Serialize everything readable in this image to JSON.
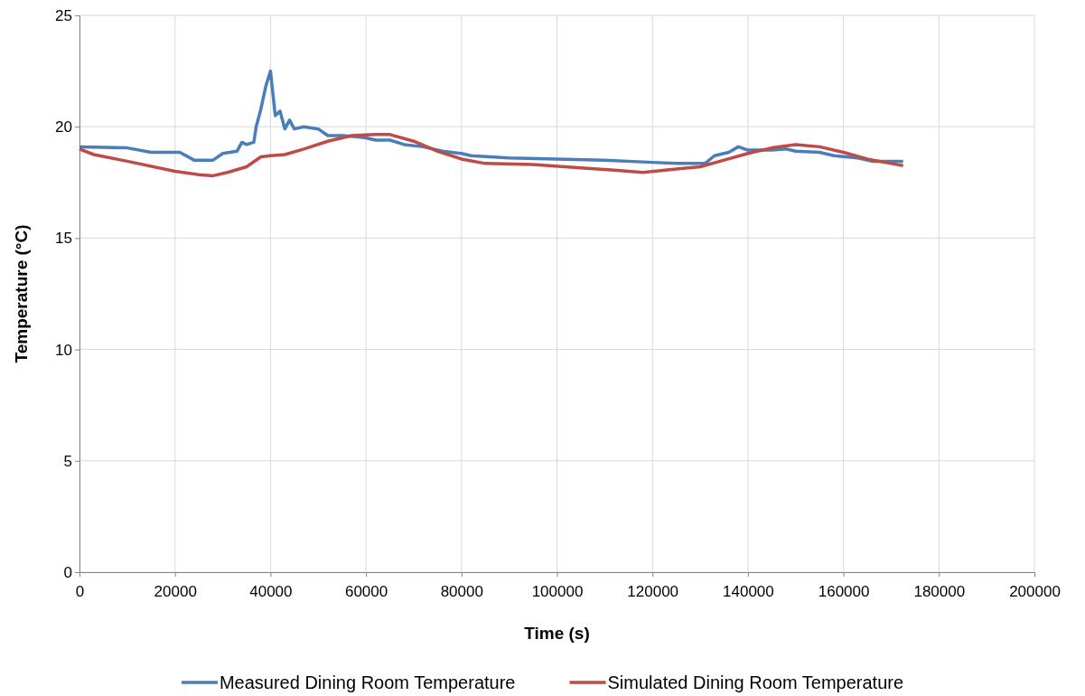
{
  "chart_data": {
    "type": "line",
    "xlabel": "Time (s)",
    "ylabel": "Temperature (°C)",
    "xlim": [
      0,
      200000
    ],
    "xticks": [
      0,
      20000,
      40000,
      60000,
      80000,
      100000,
      120000,
      140000,
      160000,
      180000,
      200000
    ],
    "ylim": [
      0,
      25
    ],
    "yticks": [
      0,
      5,
      10,
      15,
      20,
      25
    ],
    "grid": true,
    "legend": "bottom",
    "line_style": "solid",
    "marker": "none",
    "series": [
      {
        "name": "Measured Dining Room Temperature",
        "color": "#4a7ebb",
        "x": [
          0,
          10000,
          15000,
          21000,
          24000,
          28000,
          30000,
          33000,
          34000,
          35000,
          36500,
          37000,
          38000,
          39000,
          40000,
          40500,
          41000,
          42000,
          43000,
          44000,
          45000,
          47000,
          50000,
          52000,
          55000,
          58000,
          60000,
          62000,
          65000,
          68000,
          72000,
          76000,
          80000,
          82000,
          90000,
          100000,
          110000,
          120000,
          125000,
          131000,
          133000,
          136000,
          138000,
          140000,
          145000,
          148000,
          150000,
          155000,
          158000,
          163000,
          166000,
          172500
        ],
        "values": [
          19.1,
          19.05,
          18.85,
          18.85,
          18.5,
          18.5,
          18.8,
          18.9,
          19.3,
          19.2,
          19.3,
          20.0,
          20.8,
          21.8,
          22.5,
          21.5,
          20.5,
          20.7,
          19.9,
          20.3,
          19.9,
          20.0,
          19.9,
          19.6,
          19.6,
          19.55,
          19.5,
          19.4,
          19.4,
          19.2,
          19.1,
          18.9,
          18.8,
          18.7,
          18.6,
          18.55,
          18.5,
          18.4,
          18.35,
          18.35,
          18.7,
          18.85,
          19.1,
          18.95,
          18.95,
          19.0,
          18.9,
          18.85,
          18.7,
          18.6,
          18.45,
          18.45
        ]
      },
      {
        "name": "Simulated Dining Room Temperature",
        "color": "#be4b48",
        "x": [
          0,
          3000,
          10000,
          20000,
          25000,
          28000,
          31000,
          35000,
          38000,
          40000,
          43000,
          47000,
          52000,
          57000,
          62000,
          65000,
          70000,
          75000,
          80000,
          85000,
          95000,
          105000,
          112000,
          118000,
          125000,
          130000,
          135000,
          140000,
          145000,
          150000,
          155000,
          160000,
          165000,
          170000,
          172500
        ],
        "values": [
          19.0,
          18.75,
          18.45,
          18.0,
          17.85,
          17.8,
          17.95,
          18.2,
          18.65,
          18.7,
          18.75,
          19.0,
          19.35,
          19.6,
          19.65,
          19.65,
          19.35,
          18.9,
          18.55,
          18.35,
          18.3,
          18.15,
          18.05,
          17.95,
          18.1,
          18.2,
          18.5,
          18.8,
          19.05,
          19.2,
          19.1,
          18.85,
          18.55,
          18.35,
          18.25
        ]
      }
    ]
  }
}
